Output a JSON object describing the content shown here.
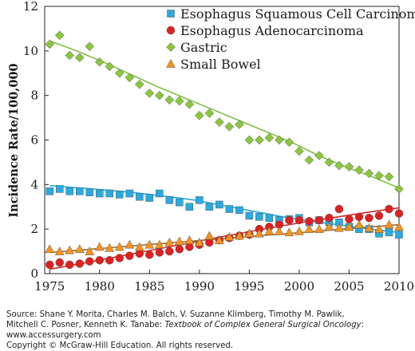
{
  "chart_data": {
    "type": "scatter",
    "ylabel": "Incidence Rate/100,000",
    "xlabel": "",
    "xlim": [
      1974.5,
      2010
    ],
    "ylim": [
      0,
      12
    ],
    "xticks": [
      1975,
      1980,
      1985,
      1990,
      1995,
      2000,
      2005,
      2010
    ],
    "yticks": [
      0,
      2,
      4,
      6,
      8,
      10,
      12
    ],
    "legend_position": "top-right",
    "grid": false,
    "series": [
      {
        "name": "Esophagus Squamous Cell Carcinoma",
        "marker": "square",
        "color": "#29abe2",
        "line_color": "#29abe2",
        "x": [
          1975,
          1976,
          1977,
          1978,
          1979,
          1980,
          1981,
          1982,
          1983,
          1984,
          1985,
          1986,
          1987,
          1988,
          1989,
          1990,
          1991,
          1992,
          1993,
          1994,
          1995,
          1996,
          1997,
          1998,
          1999,
          2000,
          2001,
          2002,
          2003,
          2004,
          2005,
          2006,
          2007,
          2008,
          2009,
          2010
        ],
        "values": [
          3.7,
          3.8,
          3.7,
          3.7,
          3.65,
          3.6,
          3.6,
          3.55,
          3.6,
          3.45,
          3.4,
          3.6,
          3.3,
          3.2,
          3.0,
          3.3,
          3.0,
          3.1,
          2.9,
          2.85,
          2.6,
          2.55,
          2.5,
          2.4,
          2.45,
          2.5,
          2.3,
          2.4,
          2.3,
          2.3,
          2.1,
          2.0,
          2.0,
          1.8,
          1.85,
          1.75
        ],
        "trend": [
          3.95,
          3.85,
          3.75,
          3.62,
          3.47,
          3.3,
          3.05,
          2.8,
          2.55,
          2.35,
          2.18,
          2.0,
          1.85
        ]
      },
      {
        "name": "Esophagus Adenocarcinoma",
        "marker": "circle",
        "color": "#e02020",
        "line_color": "#d62728",
        "x": [
          1975,
          1976,
          1977,
          1978,
          1979,
          1980,
          1981,
          1982,
          1983,
          1984,
          1985,
          1986,
          1987,
          1988,
          1989,
          1990,
          1991,
          1992,
          1993,
          1994,
          1995,
          1996,
          1997,
          1998,
          1999,
          2000,
          2001,
          2002,
          2003,
          2004,
          2005,
          2006,
          2007,
          2008,
          2009,
          2010
        ],
        "values": [
          0.4,
          0.5,
          0.4,
          0.45,
          0.55,
          0.6,
          0.6,
          0.7,
          0.8,
          0.9,
          0.85,
          0.95,
          1.0,
          1.1,
          1.2,
          1.3,
          1.4,
          1.5,
          1.6,
          1.7,
          1.75,
          2.0,
          2.1,
          2.2,
          2.4,
          2.4,
          2.35,
          2.4,
          2.5,
          2.9,
          2.45,
          2.55,
          2.5,
          2.6,
          2.9,
          2.7
        ],
        "trend": [
          0.2,
          0.43,
          0.68,
          0.93,
          1.18,
          1.43,
          1.68,
          1.92,
          2.15,
          2.37,
          2.57,
          2.77,
          2.95
        ]
      },
      {
        "name": "Gastric",
        "marker": "diamond",
        "color": "#8cc63f",
        "line_color": "#7dc243",
        "x": [
          1975,
          1976,
          1977,
          1978,
          1979,
          1980,
          1981,
          1982,
          1983,
          1984,
          1985,
          1986,
          1987,
          1988,
          1989,
          1990,
          1991,
          1992,
          1993,
          1994,
          1995,
          1996,
          1997,
          1998,
          1999,
          2000,
          2001,
          2002,
          2003,
          2004,
          2005,
          2006,
          2007,
          2008,
          2009,
          2010
        ],
        "values": [
          10.3,
          10.7,
          9.8,
          9.7,
          10.2,
          9.5,
          9.3,
          9.0,
          8.8,
          8.5,
          8.1,
          8.0,
          7.8,
          7.75,
          7.6,
          7.1,
          7.2,
          6.8,
          6.6,
          6.7,
          6.0,
          6.0,
          6.1,
          6.0,
          5.9,
          5.5,
          5.1,
          5.3,
          5.0,
          4.85,
          4.8,
          4.65,
          4.5,
          4.4,
          4.35,
          3.8
        ],
        "trend": [
          10.45,
          10.0,
          9.5,
          8.95,
          8.4,
          7.9,
          7.4,
          6.9,
          6.4,
          5.9,
          5.3,
          4.8,
          4.35,
          3.85
        ]
      },
      {
        "name": "Small Bowel",
        "marker": "triangle",
        "color": "#f7941d",
        "line_color": "#9b6a3a",
        "x": [
          1975,
          1976,
          1977,
          1978,
          1979,
          1980,
          1981,
          1982,
          1983,
          1984,
          1985,
          1986,
          1987,
          1988,
          1989,
          1990,
          1991,
          1992,
          1993,
          1994,
          1995,
          1996,
          1997,
          1998,
          1999,
          2000,
          2001,
          2002,
          2003,
          2004,
          2005,
          2006,
          2007,
          2008,
          2009,
          2010
        ],
        "values": [
          1.1,
          1.0,
          1.05,
          1.1,
          1.0,
          1.2,
          1.15,
          1.2,
          1.3,
          1.2,
          1.3,
          1.3,
          1.4,
          1.45,
          1.5,
          1.4,
          1.7,
          1.5,
          1.65,
          1.7,
          1.8,
          1.8,
          1.9,
          1.9,
          1.85,
          1.9,
          2.0,
          2.0,
          2.1,
          2.05,
          2.1,
          2.2,
          2.05,
          2.0,
          2.2,
          2.1
        ],
        "trend": [
          0.95,
          1.07,
          1.2,
          1.33,
          1.45,
          1.58,
          1.7,
          1.82,
          1.95,
          2.07,
          2.2
        ]
      }
    ]
  },
  "source": {
    "line1": "Source: Shane Y. Morita, Charles M. Balch, V. Suzanne Klimberg, Timothy M. Pawlik,",
    "line2_prefix": "Mitchell C. Posner, Kenneth K. Tanabe: ",
    "line2_title": "Textbook of Complex General Surgical Oncology",
    "line2_suffix": ":",
    "line3": "www.accessurgery.com",
    "line4": "Copyright © McGraw-Hill Education. All rights reserved."
  }
}
